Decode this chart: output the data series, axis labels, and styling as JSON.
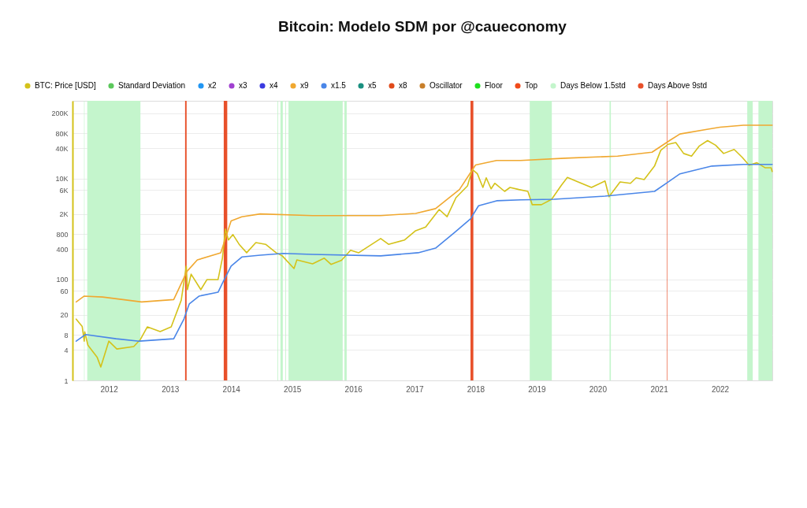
{
  "chart_data": {
    "type": "line",
    "title": "Bitcoin: Modelo SDM por @caueconomy",
    "log": true,
    "grid": "y",
    "legend": "top left",
    "marker": "none",
    "line_style": "solid",
    "xlim": [
      "2011-05-29",
      "2022-11-10"
    ],
    "ylim": [
      1,
      350000
    ],
    "xticks": [
      "2012",
      "2013",
      "2014",
      "2015",
      "2016",
      "2017",
      "2018",
      "2019",
      "2020",
      "2021",
      "2022"
    ],
    "yticks": [
      1,
      4,
      8,
      20,
      60,
      100,
      400,
      800,
      {
        "value": 2000,
        "label": "2K"
      },
      {
        "value": 6000,
        "label": "6K"
      },
      {
        "value": 10000,
        "label": "10K"
      },
      {
        "value": 40000,
        "label": "40K"
      },
      {
        "value": 80000,
        "label": "80K"
      },
      {
        "value": 200000,
        "label": "200K"
      }
    ],
    "series": [
      {
        "name": "BTC: Price [USD]",
        "color": "#d4c21a",
        "x": [
          "2011-06-20",
          "2011-07-26",
          "2011-08-07",
          "2011-08-10",
          "2011-08-29",
          "2011-10-23",
          "2011-11-14",
          "2012-01-01",
          "2012-02-18",
          "2012-05-29",
          "2012-07-08",
          "2012-08-18",
          "2012-11-03",
          "2013-01-08",
          "2013-03-09",
          "2013-04-08",
          "2013-04-15",
          "2013-05-07",
          "2013-07-04",
          "2013-08-10",
          "2013-10-15",
          "2013-11-10",
          "2013-11-28",
          "2013-12-16",
          "2014-01-12",
          "2014-02-18",
          "2014-04-04",
          "2014-05-29",
          "2014-07-26",
          "2014-09-27",
          "2014-11-03",
          "2015-01-12",
          "2015-01-29",
          "2015-05-03",
          "2015-07-12",
          "2015-08-21",
          "2015-10-23",
          "2015-12-16",
          "2016-02-03",
          "2016-06-13",
          "2016-07-30",
          "2016-11-03",
          "2017-01-08",
          "2017-03-09",
          "2017-05-29",
          "2017-07-15",
          "2017-09-06",
          "2017-11-14",
          "2017-12-13",
          "2018-01-12",
          "2018-02-14",
          "2018-03-06",
          "2018-04-04",
          "2018-04-26",
          "2018-06-24",
          "2018-07-26",
          "2018-09-17",
          "2018-11-10",
          "2018-12-06",
          "2019-01-30",
          "2019-04-01",
          "2019-05-29",
          "2019-07-04",
          "2019-09-06",
          "2019-11-25",
          "2020-02-14",
          "2020-03-09",
          "2020-05-14",
          "2020-07-15",
          "2020-08-18",
          "2020-10-05",
          "2020-12-06",
          "2021-01-12",
          "2021-02-25",
          "2021-04-12",
          "2021-05-29",
          "2021-07-15",
          "2021-08-29",
          "2021-10-19",
          "2021-12-06",
          "2022-01-23",
          "2022-03-27",
          "2022-05-14",
          "2022-06-24",
          "2022-08-10",
          "2022-09-27",
          "2022-11-03",
          "2022-11-09"
        ],
        "values": [
          16.4,
          11.7,
          6.0,
          9.2,
          5.0,
          2.9,
          1.85,
          6.0,
          4.2,
          4.7,
          6.5,
          11.5,
          9.3,
          11.5,
          39,
          185,
          63,
          128,
          63,
          100,
          100,
          265,
          1000,
          610,
          780,
          500,
          340,
          540,
          500,
          340,
          295,
          165,
          245,
          205,
          265,
          200,
          240,
          380,
          340,
          650,
          500,
          610,
          930,
          1100,
          2450,
          1760,
          4200,
          7200,
          15300,
          12500,
          6700,
          10400,
          6300,
          8100,
          5600,
          6700,
          6100,
          5600,
          3050,
          3050,
          3900,
          7400,
          10600,
          8600,
          6700,
          9000,
          4400,
          8600,
          8100,
          10400,
          9600,
          17800,
          36500,
          48000,
          52000,
          31600,
          28000,
          44000,
          57000,
          46000,
          31600,
          38000,
          26500,
          18500,
          20700,
          16500,
          16500,
          13900
        ]
      },
      {
        "name": "Standard Deviation",
        "color": "#5cc85c"
      },
      {
        "name": "x2",
        "color": "#2196f3"
      },
      {
        "name": "x3",
        "color": "#a040d0"
      },
      {
        "name": "x4",
        "color": "#3a3ae0"
      },
      {
        "name": "x9",
        "color": "#f0a830",
        "x": [
          "2011-06-20",
          "2011-08-07",
          "2011-11-25",
          "2012-07-15",
          "2013-01-23",
          "2013-04-12",
          "2013-06-13",
          "2013-10-31",
          "2014-01-01",
          "2014-03-06",
          "2014-06-24",
          "2015-05-03",
          "2016-06-13",
          "2017-01-08",
          "2017-05-07",
          "2017-09-27",
          "2018-01-01",
          "2018-05-07",
          "2018-09-27",
          "2019-06-20",
          "2020-04-29",
          "2020-11-21",
          "2021-03-09",
          "2021-05-07",
          "2021-10-15",
          "2022-01-01",
          "2022-05-21",
          "2022-11-09"
        ],
        "values": [
          36,
          47,
          45,
          36,
          40,
          145,
          245,
          340,
          1450,
          1760,
          2000,
          1850,
          1850,
          2050,
          2550,
          6100,
          18700,
          23000,
          23000,
          25500,
          28000,
          33500,
          58000,
          77000,
          95000,
          105000,
          115000,
          115000
        ]
      },
      {
        "name": "x1.5",
        "color": "#4a86e8",
        "x": [
          "2011-06-20",
          "2011-08-14",
          "2012-02-14",
          "2012-07-01",
          "2013-01-23",
          "2013-03-25",
          "2013-04-26",
          "2013-06-24",
          "2013-10-15",
          "2013-11-14",
          "2014-01-01",
          "2014-03-06",
          "2014-06-24",
          "2014-11-10",
          "2015-05-03",
          "2016-06-13",
          "2017-01-23",
          "2017-05-07",
          "2017-08-29",
          "2017-12-02",
          "2018-01-19",
          "2018-05-07",
          "2018-09-27",
          "2019-04-15",
          "2020-02-14",
          "2020-12-06",
          "2021-02-25",
          "2021-05-07",
          "2021-11-14",
          "2022-05-21",
          "2022-11-09"
        ],
        "values": [
          6.0,
          8.1,
          6.7,
          6.0,
          6.7,
          16.5,
          33,
          47,
          56,
          90,
          185,
          280,
          305,
          330,
          316,
          295,
          340,
          420,
          860,
          1600,
          2900,
          3650,
          3800,
          3900,
          4500,
          5600,
          8600,
          12500,
          17800,
          19200,
          19200
        ]
      },
      {
        "name": "x5",
        "color": "#1a9080"
      },
      {
        "name": "x8",
        "color": "#e04a1a"
      },
      {
        "name": "Oscillator",
        "color": "#c87f2a"
      },
      {
        "name": "Floor",
        "color": "#1ee01e"
      },
      {
        "name": "Top",
        "color": "#f04a1a"
      }
    ],
    "bands": [
      {
        "axis": "x",
        "from": "2011-08-06",
        "to": "2011-08-09",
        "label": "Days Below 1.5std",
        "color": "#c4f5cc"
      },
      {
        "axis": "x",
        "from": "2011-08-25",
        "to": "2012-07-08",
        "color": "#c4f5cc"
      },
      {
        "axis": "x",
        "from": "2014-10-05",
        "to": "2014-10-09",
        "color": "#c4f5cc"
      },
      {
        "axis": "x",
        "from": "2014-10-23",
        "to": "2014-11-06",
        "color": "#c4f5cc"
      },
      {
        "axis": "x",
        "from": "2014-11-21",
        "to": "2014-11-25",
        "color": "#c4f5cc"
      },
      {
        "axis": "x",
        "from": "2014-12-10",
        "to": "2015-10-30",
        "color": "#c4f5cc"
      },
      {
        "axis": "x",
        "from": "2015-11-09",
        "to": "2015-11-23",
        "color": "#c4f5cc"
      },
      {
        "axis": "x",
        "from": "2018-11-21",
        "to": "2019-04-02",
        "color": "#c4f5cc"
      },
      {
        "axis": "x",
        "from": "2020-03-12",
        "to": "2020-03-20",
        "color": "#c4f5cc"
      },
      {
        "axis": "x",
        "from": "2022-06-13",
        "to": "2022-07-16",
        "color": "#c4f5cc"
      },
      {
        "axis": "x",
        "from": "2022-08-19",
        "to": "2022-11-10",
        "color": "#c4f5cc"
      },
      {
        "axis": "x",
        "from": "2013-04-01",
        "to": "2013-04-10",
        "label": "Days Above 9std",
        "color": "#e8502a"
      },
      {
        "axis": "x",
        "from": "2013-11-18",
        "to": "2013-12-09",
        "color": "#e8502a"
      },
      {
        "axis": "x",
        "from": "2017-12-02",
        "to": "2017-12-19",
        "color": "#e8502a"
      },
      {
        "axis": "x",
        "from": "2021-02-17",
        "to": "2021-02-20",
        "color": "#e8502a"
      }
    ]
  }
}
